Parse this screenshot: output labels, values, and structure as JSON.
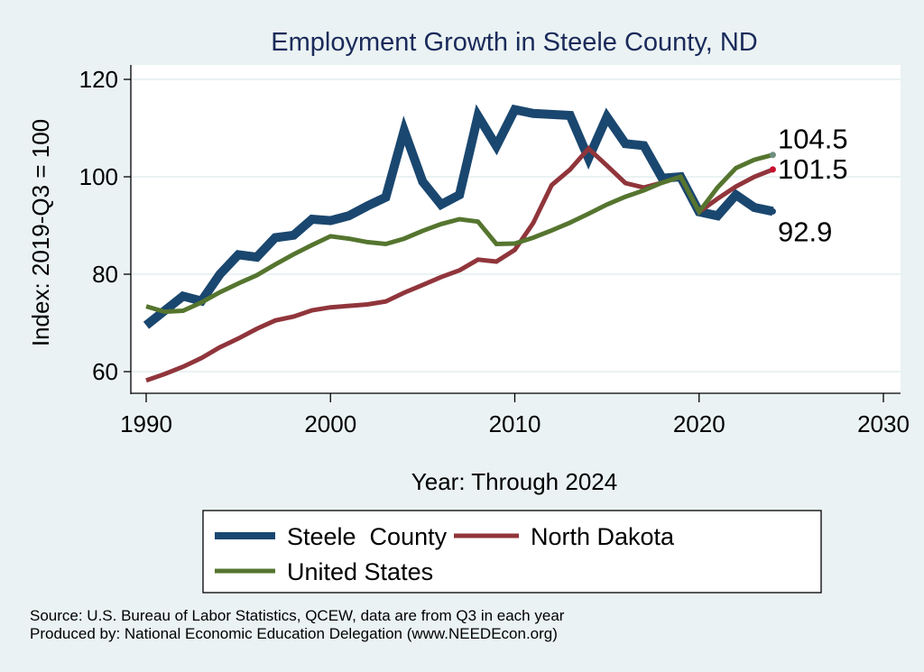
{
  "chart_data": {
    "type": "line",
    "title": "Employment Growth in Steele County, ND",
    "xlabel": "Year: Through 2024",
    "ylabel": "Index: 2019-Q3 = 100",
    "xlim": [
      1990,
      2030
    ],
    "ylim": [
      58,
      122
    ],
    "xticks": [
      1990,
      2000,
      2010,
      2020,
      2030
    ],
    "yticks": [
      60,
      80,
      100,
      120
    ],
    "grid": true,
    "legend_position": "bottom",
    "x": [
      1990,
      1991,
      1992,
      1993,
      1994,
      1995,
      1996,
      1997,
      1998,
      1999,
      2000,
      2001,
      2002,
      2003,
      2004,
      2005,
      2006,
      2007,
      2008,
      2009,
      2010,
      2011,
      2012,
      2013,
      2014,
      2015,
      2016,
      2017,
      2018,
      2019,
      2020,
      2021,
      2022,
      2023,
      2024
    ],
    "series": [
      {
        "name": "Steele  County",
        "color": "#1a476f",
        "end_label": "92.9",
        "values": [
          69.5,
          72.5,
          75.5,
          74.5,
          80,
          84,
          83.5,
          87.5,
          88,
          91.3,
          91,
          92,
          94,
          95.8,
          109.5,
          99,
          94.3,
          96.3,
          112.5,
          106.3,
          113.8,
          113,
          112.8,
          112.6,
          103.8,
          112.3,
          106.8,
          106.4,
          99.7,
          100,
          92.8,
          92,
          96.3,
          93.7,
          92.9
        ]
      },
      {
        "name": "North Dakota",
        "color": "#90353b",
        "end_label": "101.5",
        "values": [
          58.2,
          59.5,
          61,
          62.8,
          65,
          66.8,
          68.8,
          70.5,
          71.3,
          72.6,
          73.2,
          73.5,
          73.8,
          74.4,
          76.2,
          77.8,
          79.4,
          80.8,
          83,
          82.6,
          85,
          90.5,
          98.3,
          101.5,
          105.8,
          102.3,
          98.7,
          97.8,
          98.8,
          100,
          92.8,
          95.5,
          98,
          100,
          101.5
        ]
      },
      {
        "name": "United States",
        "color": "#55752f",
        "end_label": "104.5",
        "values": [
          73.4,
          72.3,
          72.5,
          74.2,
          76.3,
          78.1,
          79.8,
          82,
          84.1,
          86,
          87.8,
          87.3,
          86.6,
          86.2,
          87.3,
          88.9,
          90.3,
          91.3,
          90.8,
          86.2,
          86.3,
          87.5,
          89,
          90.6,
          92.4,
          94.3,
          95.9,
          97.2,
          98.8,
          100,
          92.8,
          97.8,
          101.8,
          103.5,
          104.5
        ]
      }
    ]
  },
  "notes": {
    "source": "Source: U.S. Bureau of Labor Statistics, QCEW, data are from Q3 in each year",
    "producer": "Produced by: National Economic Education Delegation (www.NEEDEcon.org)"
  }
}
